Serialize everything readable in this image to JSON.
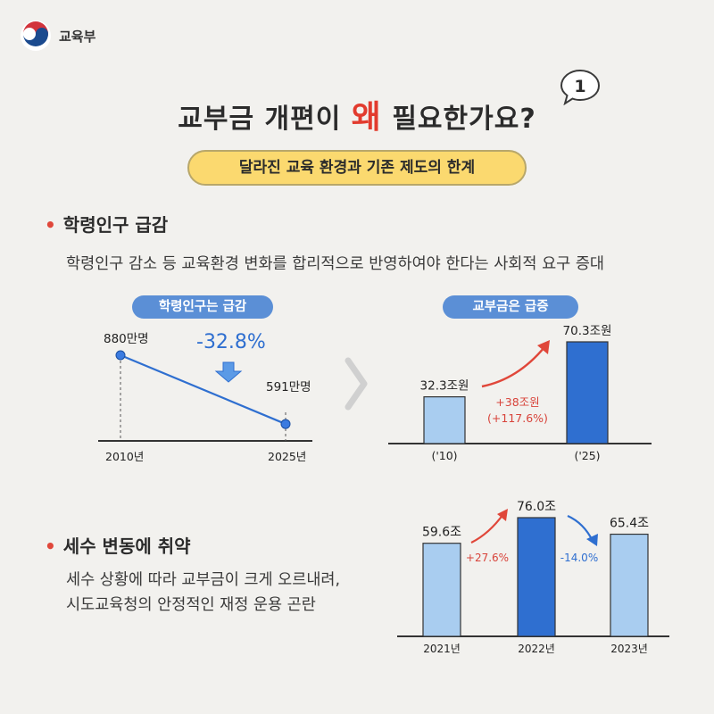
{
  "header": {
    "ministry": "교육부"
  },
  "title": {
    "before": "교부금 개편이 ",
    "highlight": "왜",
    "after": " 필요한가요?",
    "bubble_number": "1"
  },
  "subtitle": "달라진 교육 환경과 기존 제도의 한계",
  "section1": {
    "title": "학령인구 급감",
    "description": "학령인구 감소 등 교육환경 변화를 합리적으로 반영하여야 한다는 사회적 요구 증대"
  },
  "section2": {
    "title": "세수 변동에 취약",
    "description_line1": "세수 상황에 따라 교부금이 크게 오르내려,",
    "description_line2": "시도교육청의 안정적인 재정 운용 곤란"
  },
  "colors": {
    "accent_red": "#e23b2e",
    "bar_light": "#a9cdf0",
    "bar_dark": "#2f6fd0",
    "chip_blue": "#5b8fd6",
    "subtitle_bg": "#fbd96f"
  },
  "chart_data": [
    {
      "type": "line",
      "title": "학령인구는 급감",
      "x": [
        "2010년",
        "2025년"
      ],
      "values": [
        880,
        591
      ],
      "point_labels": [
        "880만명",
        "591만명"
      ],
      "annotation": "-32.8%"
    },
    {
      "type": "bar",
      "title": "교부금은 급증",
      "categories": [
        "('10)",
        "('25)"
      ],
      "values": [
        32.3,
        70.3
      ],
      "value_labels": [
        "32.3조원",
        "70.3조원"
      ],
      "change_annotation": [
        "+38조원",
        "(+117.6%)"
      ]
    },
    {
      "type": "bar",
      "title": "",
      "categories": [
        "2021년",
        "2022년",
        "2023년"
      ],
      "values": [
        59.6,
        76.0,
        65.4
      ],
      "value_labels": [
        "59.6조",
        "76.0조",
        "65.4조"
      ],
      "change_annotations": [
        "+27.6%",
        "-14.0%"
      ]
    }
  ]
}
